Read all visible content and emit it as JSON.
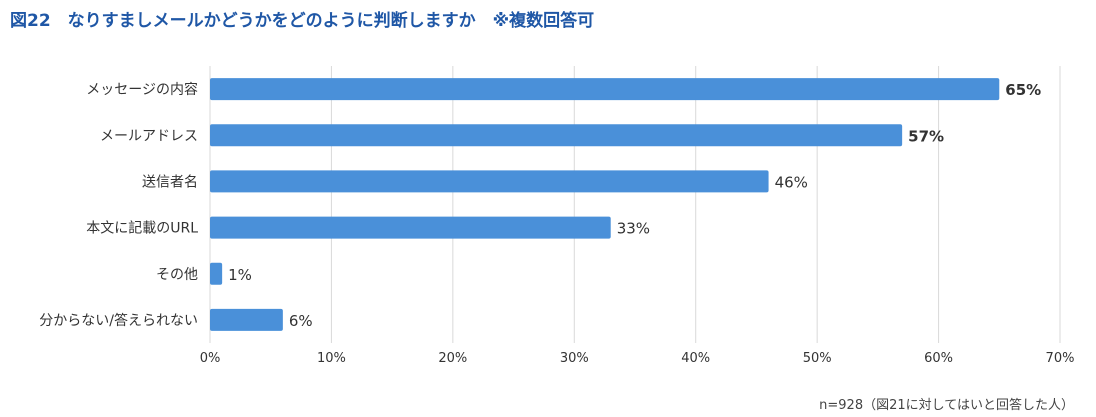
{
  "title": "図22　なりすましメールかどうかをどのように判断しますか　※複数回答可",
  "footer": "n=928（図21に対してはいと回答した人）",
  "colors": {
    "bar": "#4a90d9",
    "grid": "#d9d9d9",
    "title": "#1f57a6",
    "text": "#333333"
  },
  "chart_data": {
    "type": "bar",
    "orientation": "horizontal",
    "categories": [
      "メッセージの内容",
      "メールアドレス",
      "送信者名",
      "本文に記載のURL",
      "その他",
      "分からない/答えられない"
    ],
    "values": [
      65,
      57,
      46,
      33,
      1,
      6
    ],
    "value_labels": [
      "65%",
      "57%",
      "46%",
      "33%",
      "1%",
      "6%"
    ],
    "xlim": [
      0,
      70
    ],
    "xticks": [
      "0%",
      "10%",
      "20%",
      "30%",
      "40%",
      "50%",
      "60%",
      "70%"
    ],
    "grid": true,
    "legend": "none"
  }
}
